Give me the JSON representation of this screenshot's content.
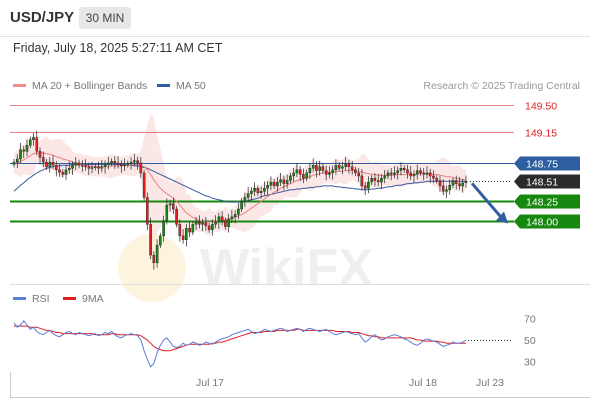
{
  "header": {
    "symbol": "USD/JPY",
    "timeframe": "30 MIN",
    "datetime": "Friday, July 18, 2025 5:27:11 AM CET"
  },
  "legend": {
    "ma20_label": "MA 20 + Bollinger Bands",
    "ma20_color": "#f08c8c",
    "ma50_label": "MA 50",
    "ma50_color": "#2f5fa0",
    "credit": "Research © 2025 Trading Central"
  },
  "rsi_legend": {
    "rsi_label": "RSI",
    "rsi_color": "#5a7fd6",
    "ma_label": "9MA",
    "ma_color": "#e02020"
  },
  "colors": {
    "resistance": "#e02020",
    "pivot": "#2f5fa0",
    "support": "#16880f",
    "current": "#333333",
    "candle_up": "#16880f",
    "candle_down": "#e02020",
    "arrow": "#2f5fa0",
    "band_fill": "#fbdada"
  },
  "chart_data": {
    "type": "line",
    "title": "USD/JPY",
    "timeframe": "30 MIN",
    "ylim": [
      147.2,
      149.62
    ],
    "y_ticks": [
      "149.50",
      "149.15",
      "148.75",
      "148.51",
      "148.25",
      "148.00"
    ],
    "x_ticks": [
      "Jul 17",
      "Jul 18",
      "Jul 23"
    ],
    "levels": [
      {
        "label": "149.50",
        "value": 149.5,
        "kind": "resistance"
      },
      {
        "label": "149.15",
        "value": 149.15,
        "kind": "resistance"
      },
      {
        "label": "148.75",
        "value": 148.75,
        "kind": "pivot"
      },
      {
        "label": "148.51",
        "value": 148.51,
        "kind": "current"
      },
      {
        "label": "148.25",
        "value": 148.25,
        "kind": "support"
      },
      {
        "label": "148.00",
        "value": 148.0,
        "kind": "support"
      }
    ],
    "close": [
      148.76,
      148.8,
      148.92,
      148.9,
      148.98,
      149.05,
      149.08,
      148.9,
      148.82,
      148.76,
      148.7,
      148.76,
      148.72,
      148.66,
      148.63,
      148.6,
      148.66,
      148.68,
      148.72,
      148.75,
      148.72,
      148.71,
      148.7,
      148.68,
      148.69,
      148.7,
      148.68,
      148.7,
      148.73,
      148.75,
      148.77,
      148.75,
      148.73,
      148.71,
      148.73,
      148.74,
      148.76,
      148.78,
      148.75,
      148.62,
      148.3,
      147.95,
      147.55,
      147.45,
      147.68,
      147.8,
      148.0,
      148.2,
      148.22,
      148.15,
      147.95,
      147.8,
      147.75,
      147.9,
      147.85,
      147.95,
      147.98,
      147.95,
      147.97,
      147.93,
      147.88,
      147.95,
      147.98,
      148.05,
      148.0,
      147.92,
      148.02,
      148.05,
      148.08,
      148.15,
      148.25,
      148.3,
      148.35,
      148.38,
      148.42,
      148.36,
      148.38,
      148.42,
      148.46,
      148.5,
      148.45,
      148.5,
      148.53,
      148.48,
      148.52,
      148.58,
      148.62,
      148.66,
      148.6,
      148.55,
      148.62,
      148.68,
      148.72,
      148.65,
      148.7,
      148.65,
      148.6,
      148.62,
      148.66,
      148.72,
      148.68,
      148.7,
      148.74,
      148.7,
      148.66,
      148.62,
      148.58,
      148.45,
      148.42,
      148.5,
      148.55,
      148.52,
      148.5,
      148.55,
      148.58,
      148.62,
      148.6,
      148.62,
      148.65,
      148.68,
      148.66,
      148.62,
      148.58,
      148.6,
      148.65,
      148.62,
      148.6,
      148.62,
      148.58,
      148.55,
      148.52,
      148.45,
      148.38,
      148.4,
      148.46,
      148.52,
      148.48,
      148.45,
      148.49,
      148.51
    ],
    "ma20": [
      148.74,
      148.75,
      148.77,
      148.79,
      148.82,
      148.84,
      148.87,
      148.88,
      148.88,
      148.88,
      148.87,
      148.86,
      148.85,
      148.83,
      148.82,
      148.8,
      148.79,
      148.78,
      148.76,
      148.75,
      148.74,
      148.73,
      148.72,
      148.71,
      148.7,
      148.7,
      148.7,
      148.7,
      148.7,
      148.7,
      148.71,
      148.71,
      148.71,
      148.71,
      148.72,
      148.72,
      148.72,
      148.73,
      148.73,
      148.72,
      148.7,
      148.66,
      148.6,
      148.53,
      148.47,
      148.42,
      148.38,
      148.35,
      148.32,
      148.29,
      148.25,
      148.2,
      148.15,
      148.1,
      148.07,
      148.04,
      148.02,
      148.0,
      147.99,
      147.98,
      147.98,
      147.98,
      147.99,
      148.0,
      148.0,
      148.01,
      148.02,
      148.03,
      148.04,
      148.06,
      148.08,
      148.1,
      148.13,
      148.16,
      148.19,
      148.22,
      148.25,
      148.28,
      148.31,
      148.34,
      148.37,
      148.39,
      148.42,
      148.44,
      148.46,
      148.48,
      148.5,
      148.52,
      148.53,
      148.54,
      148.56,
      148.57,
      148.59,
      148.6,
      148.61,
      148.62,
      148.62,
      148.63,
      148.63,
      148.64,
      148.64,
      148.64,
      148.65,
      148.65,
      148.65,
      148.65,
      148.64,
      148.63,
      148.62,
      148.61,
      148.6,
      148.6,
      148.59,
      148.59,
      148.59,
      148.59,
      148.59,
      148.59,
      148.6,
      148.6,
      148.6,
      148.6,
      148.6,
      148.6,
      148.61,
      148.61,
      148.61,
      148.61,
      148.61,
      148.6,
      148.6,
      148.59,
      148.58,
      148.57,
      148.57,
      148.56,
      148.55,
      148.54,
      148.53,
      148.53
    ],
    "ma50": [
      148.38,
      148.42,
      148.46,
      148.49,
      148.53,
      148.56,
      148.59,
      148.62,
      148.64,
      148.66,
      148.68,
      148.69,
      148.7,
      148.71,
      148.71,
      148.72,
      148.72,
      148.72,
      148.73,
      148.73,
      148.73,
      148.73,
      148.73,
      148.73,
      148.73,
      148.73,
      148.73,
      148.73,
      148.73,
      148.73,
      148.73,
      148.73,
      148.73,
      148.73,
      148.72,
      148.72,
      148.72,
      148.71,
      148.71,
      148.7,
      148.69,
      148.68,
      148.66,
      148.64,
      148.62,
      148.6,
      148.58,
      148.56,
      148.54,
      148.52,
      148.5,
      148.48,
      148.46,
      148.44,
      148.42,
      148.4,
      148.38,
      148.36,
      148.34,
      148.32,
      148.31,
      148.29,
      148.28,
      148.27,
      148.26,
      148.25,
      148.24,
      148.24,
      148.24,
      148.24,
      148.24,
      148.25,
      148.26,
      148.27,
      148.28,
      148.29,
      148.31,
      148.32,
      148.33,
      148.34,
      148.35,
      148.36,
      148.37,
      148.38,
      148.39,
      148.4,
      148.4,
      148.41,
      148.41,
      148.42,
      148.42,
      148.43,
      148.43,
      148.44,
      148.44,
      148.45,
      148.45,
      148.45,
      148.45,
      148.44,
      148.44,
      148.43,
      148.43,
      148.42,
      148.42,
      148.41,
      148.41,
      148.4,
      148.4,
      148.4,
      148.41,
      148.41,
      148.42,
      148.42,
      148.43,
      148.44,
      148.44,
      148.45,
      148.46,
      148.46,
      148.47,
      148.48,
      148.48,
      148.49,
      148.49,
      148.5,
      148.5,
      148.51,
      148.51,
      148.51,
      148.51,
      148.51,
      148.51,
      148.51,
      148.51,
      148.51,
      148.51,
      148.51,
      148.51,
      148.51
    ],
    "forecast": {
      "from": 148.51,
      "to": 148.0,
      "direction": "down"
    },
    "rsi": {
      "ylim": [
        20,
        80
      ],
      "ticks": [
        "70",
        "50",
        "30"
      ],
      "values": [
        66,
        62,
        64,
        68,
        64,
        60,
        62,
        58,
        56,
        55,
        57,
        59,
        56,
        54,
        53,
        55,
        57,
        58,
        56,
        55,
        57,
        56,
        55,
        54,
        55,
        56,
        54,
        55,
        57,
        56,
        58,
        55,
        53,
        52,
        54,
        55,
        56,
        55,
        54,
        50,
        40,
        32,
        25,
        28,
        38,
        45,
        50,
        52,
        48,
        44,
        43,
        44,
        47,
        45,
        46,
        48,
        47,
        45,
        46,
        48,
        47,
        46,
        48,
        50,
        51,
        52,
        53,
        55,
        56,
        57,
        58,
        59,
        60,
        58,
        56,
        57,
        58,
        60,
        59,
        58,
        59,
        60,
        61,
        60,
        58,
        59,
        60,
        61,
        60,
        58,
        60,
        61,
        60,
        59,
        58,
        59,
        60,
        58,
        56,
        55,
        56,
        57,
        58,
        57,
        56,
        55,
        56,
        52,
        48,
        50,
        53,
        55,
        52,
        50,
        51,
        53,
        54,
        55,
        54,
        53,
        51,
        50,
        48,
        46,
        45,
        47,
        50,
        51,
        50,
        49,
        48,
        46,
        44,
        45,
        46,
        48,
        47,
        47,
        48,
        50
      ],
      "ma9": [
        63,
        63,
        63,
        63,
        63,
        62,
        62,
        62,
        61,
        60,
        59,
        59,
        58,
        57,
        57,
        56,
        56,
        56,
        56,
        56,
        56,
        56,
        56,
        56,
        56,
        55,
        55,
        55,
        55,
        55,
        56,
        56,
        55,
        55,
        55,
        55,
        55,
        55,
        55,
        54,
        52,
        50,
        47,
        44,
        42,
        41,
        40,
        40,
        40,
        41,
        42,
        43,
        44,
        45,
        46,
        46,
        46,
        46,
        46,
        46,
        46,
        47,
        47,
        48,
        48,
        49,
        50,
        51,
        52,
        53,
        54,
        55,
        56,
        57,
        57,
        57,
        57,
        58,
        58,
        58,
        58,
        59,
        59,
        59,
        59,
        59,
        59,
        60,
        60,
        59,
        59,
        59,
        59,
        59,
        59,
        59,
        59,
        59,
        59,
        58,
        58,
        58,
        58,
        58,
        57,
        57,
        57,
        56,
        55,
        54,
        54,
        53,
        53,
        52,
        52,
        52,
        52,
        52,
        52,
        52,
        52,
        52,
        52,
        51,
        50,
        50,
        49,
        49,
        49,
        49,
        49,
        48,
        48,
        47,
        47,
        47,
        47,
        47,
        47,
        47
      ]
    }
  }
}
